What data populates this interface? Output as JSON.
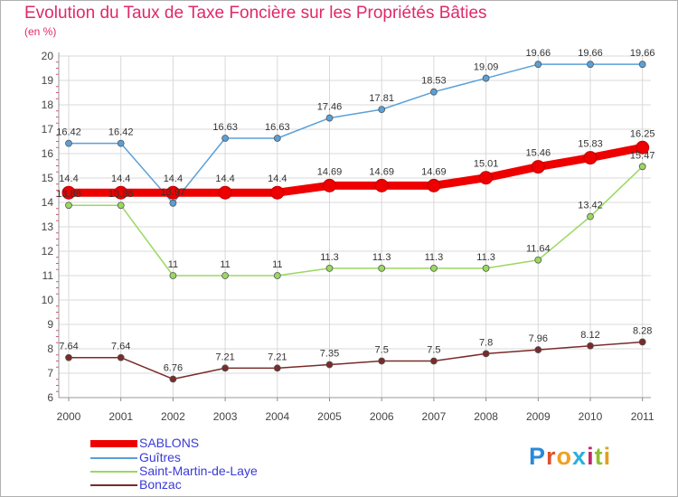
{
  "title": "Evolution du Taux de Taxe Foncière sur les Propriétés Bâties",
  "unit_label": "(en %)",
  "logo": "Proxiti",
  "chart_data": {
    "type": "line",
    "title": "Evolution du Taux de Taxe Foncière sur les Propriétés Bâties",
    "ylabel": "(en %)",
    "xlabel": "",
    "ylim": [
      6,
      20
    ],
    "yticks": [
      6,
      7,
      8,
      9,
      10,
      11,
      12,
      13,
      14,
      15,
      16,
      17,
      18,
      19,
      20
    ],
    "grid": true,
    "legend_position": "bottom-left",
    "x": [
      "2000",
      "2001",
      "2002",
      "2003",
      "2004",
      "2005",
      "2006",
      "2007",
      "2008",
      "2009",
      "2010",
      "2011"
    ],
    "series": [
      {
        "name": "SABLONS",
        "color": "#ee0000",
        "emphasis": true,
        "values": [
          14.4,
          14.4,
          14.4,
          14.4,
          14.4,
          14.69,
          14.69,
          14.69,
          15.01,
          15.46,
          15.83,
          16.25
        ],
        "labels": [
          "14.4",
          "14.4",
          "14.4",
          "14.4",
          "14.4",
          "14.69",
          "14.69",
          "14.69",
          "15.01",
          "15.46",
          "15.83",
          "16.25"
        ]
      },
      {
        "name": "Guîtres",
        "color": "#5aa0d8",
        "values": [
          16.42,
          16.42,
          13.97,
          16.63,
          16.63,
          17.46,
          17.81,
          18.53,
          19.09,
          19.66,
          19.66,
          19.66
        ],
        "labels": [
          "16.42",
          "16.42",
          "13.97",
          "16.63",
          "16.63",
          "17.46",
          "17.81",
          "18.53",
          "19.09",
          "19.66",
          "19.66",
          "19.66"
        ]
      },
      {
        "name": "Saint-Martin-de-Laye",
        "color": "#9ad860",
        "values": [
          13.88,
          13.88,
          11,
          11,
          11,
          11.3,
          11.3,
          11.3,
          11.3,
          11.64,
          13.42,
          15.47
        ],
        "labels": [
          "13.88",
          "13.88",
          "11",
          "11",
          "11",
          "11.3",
          "11.3",
          "11.3",
          "11.3",
          "11.64",
          "13.42",
          "15.47"
        ]
      },
      {
        "name": "Bonzac",
        "color": "#7a2a2a",
        "values": [
          7.64,
          7.64,
          6.76,
          7.21,
          7.21,
          7.35,
          7.5,
          7.5,
          7.8,
          7.96,
          8.12,
          8.28
        ],
        "labels": [
          "7.64",
          "7.64",
          "6.76",
          "7.21",
          "7.21",
          "7.35",
          "7.5",
          "7.5",
          "7.8",
          "7.96",
          "8.12",
          "8.28"
        ]
      }
    ]
  }
}
